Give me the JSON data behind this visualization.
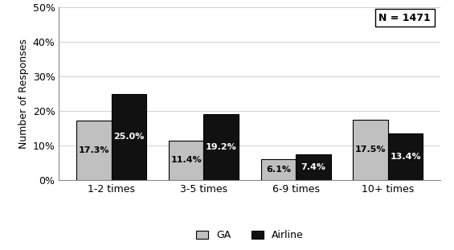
{
  "categories": [
    "1-2 times",
    "3-5 times",
    "6-9 times",
    "10+ times"
  ],
  "ga_values": [
    17.3,
    11.4,
    6.1,
    17.5
  ],
  "airline_values": [
    25.0,
    19.2,
    7.4,
    13.4
  ],
  "ga_color": "#c0c0c0",
  "airline_color": "#111111",
  "ylabel": "Number of Responses",
  "ylim": [
    0,
    50
  ],
  "yticks": [
    0,
    10,
    20,
    30,
    40,
    50
  ],
  "ytick_labels": [
    "0%",
    "10%",
    "20%",
    "30%",
    "40%",
    "50%"
  ],
  "annotation_n": "N = 1471",
  "bar_width": 0.38,
  "legend_ga": "GA",
  "legend_airline": "Airline",
  "label_fontsize": 8,
  "axis_label_fontsize": 9,
  "tick_fontsize": 9,
  "legend_fontsize": 9,
  "background_color": "#ffffff",
  "edge_color": "#000000",
  "grid_color": "#d0d0d0"
}
